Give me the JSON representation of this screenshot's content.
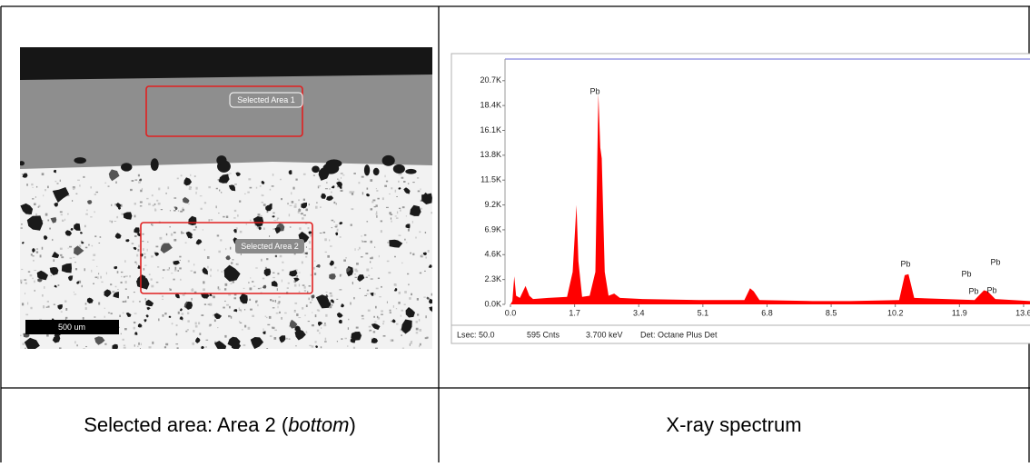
{
  "left": {
    "image": {
      "labels": [
        "Selected Area 1",
        "Selected Area 2"
      ],
      "scale_bar": "500 um"
    },
    "caption": {
      "before": "Selected area: Area 2 (",
      "italic": "bottom",
      "after": ")"
    }
  },
  "right": {
    "spectrum": {
      "type": "area",
      "color": "#ff0000",
      "energy": [
        0.0,
        0.05,
        0.1,
        0.15,
        0.25,
        0.4,
        0.5,
        0.6,
        1.0,
        1.5,
        1.65,
        1.75,
        1.8,
        1.9,
        2.1,
        2.25,
        2.33,
        2.38,
        2.42,
        2.5,
        2.6,
        2.75,
        2.9,
        3.5,
        5.0,
        6.2,
        6.35,
        6.45,
        6.6,
        8.0,
        9.0,
        10.3,
        10.45,
        10.55,
        10.7,
        12.3,
        12.55,
        12.65,
        12.85,
        13.77
      ],
      "counts": [
        0,
        300,
        2600,
        800,
        600,
        1700,
        800,
        500,
        600,
        700,
        3000,
        9200,
        4000,
        700,
        800,
        3000,
        19500,
        14500,
        13500,
        3000,
        800,
        1000,
        600,
        500,
        400,
        400,
        1500,
        1200,
        400,
        300,
        300,
        400,
        2700,
        2800,
        600,
        400,
        1300,
        1200,
        500,
        300
      ],
      "xlim": [
        0,
        13.77
      ],
      "ylim": [
        0,
        22700
      ],
      "xticks": [
        {
          "value": 0,
          "label": "0.0"
        },
        1.7,
        3.4,
        5.1,
        6.8,
        8.5,
        10.2,
        11.9,
        13.6
      ],
      "yticks": [
        {
          "value": 0,
          "label": "0.0K"
        },
        {
          "value": 2300,
          "label": "2.3K"
        },
        {
          "value": 4600,
          "label": "4.6K"
        },
        {
          "value": 6900,
          "label": "6.9K"
        },
        {
          "value": 9200,
          "label": "9.2K"
        },
        {
          "value": 11500,
          "label": "11.5K"
        },
        {
          "value": 13800,
          "label": "13.8K"
        },
        {
          "value": 16100,
          "label": "16.1K"
        },
        {
          "value": 18400,
          "label": "18.4K"
        },
        {
          "value": 20700,
          "label": "20.7K"
        }
      ],
      "peak_labels": [
        "Pb",
        "Pb",
        "Pb",
        "Pb",
        "Pb",
        "Pb"
      ],
      "status": [
        "Lsec: 50.0",
        "595 Cnts",
        "3.700 keV",
        "Det: Octane Plus Det"
      ]
    },
    "caption": "X-ray spectrum"
  }
}
